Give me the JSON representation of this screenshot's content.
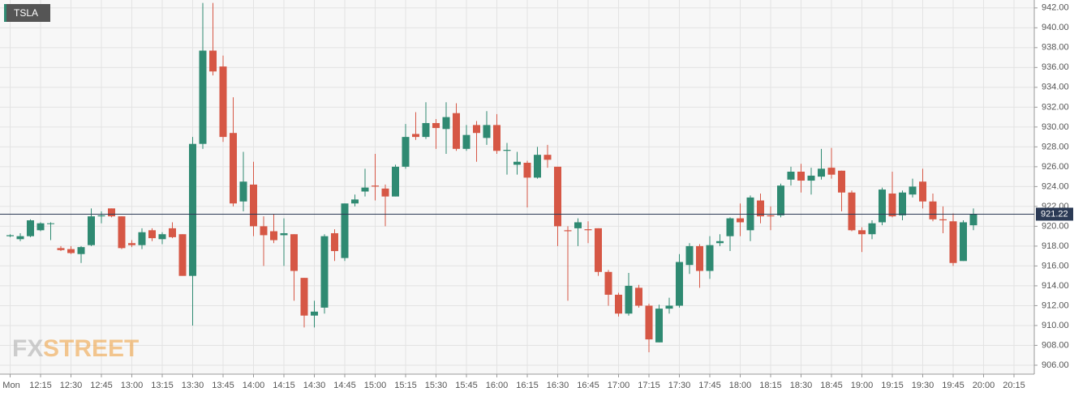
{
  "chart_data": {
    "type": "candlestick",
    "symbol": "TSLA",
    "watermark": [
      "FX",
      "STREET"
    ],
    "categories": [
      "Mon",
      null,
      null,
      "12:15",
      null,
      null,
      "12:30",
      null,
      null,
      "12:45",
      null,
      null,
      "13:00",
      null,
      null,
      "13:15",
      null,
      null,
      "13:30",
      null,
      null,
      "13:45",
      null,
      null,
      "14:00",
      null,
      null,
      "14:15",
      null,
      null,
      "14:30",
      null,
      null,
      "14:45",
      null,
      null,
      "15:00",
      null,
      null,
      "15:15",
      null,
      null,
      "15:30",
      null,
      null,
      "15:45",
      null,
      null,
      "16:00",
      null,
      null,
      "16:15",
      null,
      null,
      "16:30",
      null,
      null,
      "16:45",
      null,
      null,
      "17:00",
      null,
      null,
      "17:15",
      null,
      null,
      "17:30",
      null,
      null,
      "17:45",
      null,
      null,
      "18:00",
      null,
      null,
      "18:15",
      null,
      null,
      "18:30",
      null,
      null,
      "18:45",
      null,
      null,
      "19:00",
      null,
      null,
      "19:15",
      null,
      null,
      "19:30",
      null,
      null,
      "19:45",
      null,
      null,
      "20:00",
      null,
      null,
      "20:15"
    ],
    "open": [
      919,
      918.7,
      919,
      919.6,
      920.3,
      917.8,
      917.7,
      917.2,
      918.1,
      921,
      921.8,
      921,
      918.3,
      918.1,
      919.6,
      918.7,
      919.8,
      919.2,
      915,
      928.3,
      937.7,
      936.1,
      929.4,
      922.5,
      924.2,
      920,
      919.5,
      919.1,
      919.2,
      914.8,
      911,
      911.8,
      919.3,
      916.8,
      922.3,
      923.5,
      924.1,
      923.8,
      923,
      926,
      929.3,
      929,
      930.4,
      929.8,
      931.4,
      927.8,
      930.2,
      928.9,
      930.2,
      927.6,
      926.2,
      926.4,
      924.9,
      927.2,
      926,
      919.6,
      919.8,
      919.7,
      919.8,
      915.4,
      913.1,
      911.2,
      913.8,
      912,
      908.3,
      911.7,
      912,
      916.1,
      918,
      915.5,
      918.3,
      919,
      920.8,
      919.6,
      922.6,
      921.1,
      921.1,
      924.7,
      925.5,
      924.6,
      925,
      925.9,
      925.6,
      923.4,
      919.6,
      919.2,
      920.4,
      923.3,
      921.1,
      923.2,
      924.5,
      922.5,
      920.7,
      920.5,
      916.5,
      920.1,
      null,
      null,
      null,
      null
    ],
    "high": [
      919.2,
      919.3,
      920.7,
      920.4,
      920.4,
      918,
      918,
      918,
      921.8,
      921.5,
      921.8,
      921,
      918.6,
      919.8,
      919.8,
      919.4,
      920.4,
      919.2,
      929,
      942.5,
      942.5,
      937.2,
      933,
      927.5,
      926.5,
      921,
      921.2,
      920.8,
      919.2,
      914.8,
      912.5,
      919.2,
      919.7,
      922.3,
      923.2,
      925.8,
      927.3,
      924.2,
      926.2,
      930.3,
      931.5,
      932.5,
      930.8,
      932.5,
      932.4,
      930.2,
      930.6,
      931.6,
      931.3,
      928.4,
      927.5,
      926.6,
      928,
      928.2,
      926,
      920,
      920.8,
      920.5,
      919.8,
      915.6,
      913.3,
      915.3,
      914.1,
      912.2,
      912.1,
      912.8,
      917.2,
      918.3,
      918.2,
      919,
      919.2,
      920.9,
      922.3,
      923.1,
      923.3,
      922,
      924.3,
      926,
      926.3,
      925.9,
      927.8,
      927.9,
      925.6,
      923.6,
      919.9,
      920.6,
      923.9,
      925.5,
      923.6,
      924.8,
      925.8,
      923.3,
      922,
      921.3,
      920.6,
      921.8,
      null,
      null,
      null,
      null
    ],
    "low": [
      918.9,
      918.5,
      918.9,
      919.5,
      918.6,
      917.5,
      917.2,
      916.3,
      918,
      920.3,
      920.9,
      917.7,
      917.9,
      917.7,
      918.5,
      918.2,
      918.8,
      915,
      910,
      927.8,
      935.2,
      928.5,
      922,
      921.5,
      919,
      916,
      918.3,
      916,
      912.5,
      909.8,
      909.8,
      911.2,
      916.5,
      916.5,
      922,
      923,
      922.6,
      920,
      923,
      925.8,
      928.7,
      928.8,
      927.8,
      927.3,
      927.6,
      927.6,
      926.5,
      928.2,
      927.3,
      925.2,
      925.2,
      921.9,
      924.8,
      925.9,
      918,
      912.5,
      918,
      918.3,
      915,
      912,
      910.9,
      911,
      911.8,
      907.3,
      908.3,
      911.2,
      911.8,
      915.2,
      913.8,
      914.7,
      918,
      917.5,
      919,
      918.5,
      920.3,
      919.6,
      920.9,
      924.1,
      923.4,
      923.2,
      924.7,
      924.8,
      921.5,
      919.5,
      917.4,
      918.7,
      920.1,
      920.9,
      920.6,
      922.9,
      921.8,
      920.5,
      919.3,
      916,
      916.5,
      919.6,
      null,
      null,
      null,
      null
    ],
    "close": [
      919.1,
      919,
      920.6,
      920.3,
      920.3,
      917.6,
      917.3,
      917.9,
      921,
      921.1,
      921,
      917.8,
      918.1,
      919.4,
      918.8,
      919.2,
      918.9,
      915,
      928.3,
      937.7,
      935.6,
      929,
      922.3,
      924.5,
      920,
      919.1,
      918.6,
      919.3,
      915.5,
      911,
      911.4,
      919,
      917.5,
      922.3,
      922.7,
      923.9,
      924,
      923,
      926,
      929,
      929,
      930.4,
      929.9,
      931,
      927.8,
      929.2,
      929.4,
      930.2,
      927.6,
      927.7,
      926.5,
      924.9,
      927.2,
      926.7,
      920,
      919.5,
      920.4,
      919.6,
      915.4,
      913.1,
      911.2,
      914,
      912,
      908.6,
      911.7,
      912,
      916.4,
      918,
      915.5,
      918.1,
      918.5,
      920.8,
      920.4,
      922.9,
      921,
      921,
      924.1,
      925.5,
      924.6,
      925.1,
      925.8,
      925.2,
      923.4,
      919.6,
      919.2,
      920.3,
      923.7,
      921,
      923.4,
      924,
      922.5,
      920.7,
      920.6,
      916.3,
      920.4,
      921.22,
      null,
      null,
      null,
      null
    ],
    "up_color": "#2f8a72",
    "down_color": "#d65745",
    "last_price": 921.22,
    "ylim": [
      905.1,
      942.8
    ],
    "yticks": [
      {
        "value": 906,
        "label": "906.00"
      },
      {
        "value": 908,
        "label": "908.00"
      },
      {
        "value": 910,
        "label": "910.00"
      },
      {
        "value": 912,
        "label": "912.00"
      },
      {
        "value": 914,
        "label": "914.00"
      },
      {
        "value": 916,
        "label": "916.00"
      },
      {
        "value": 918,
        "label": "918.00"
      },
      {
        "value": 920,
        "label": "920.00"
      },
      {
        "value": 922,
        "label": "922.00"
      },
      {
        "value": 924,
        "label": "924.00"
      },
      {
        "value": 926,
        "label": "926.00"
      },
      {
        "value": 928,
        "label": "928.00"
      },
      {
        "value": 930,
        "label": "930.00"
      },
      {
        "value": 932,
        "label": "932.00"
      },
      {
        "value": 934,
        "label": "934.00"
      },
      {
        "value": 936,
        "label": "936.00"
      },
      {
        "value": 938,
        "label": "938.00"
      },
      {
        "value": 940,
        "label": "940.00"
      },
      {
        "value": 942,
        "label": "942.00"
      }
    ],
    "grid": true
  }
}
